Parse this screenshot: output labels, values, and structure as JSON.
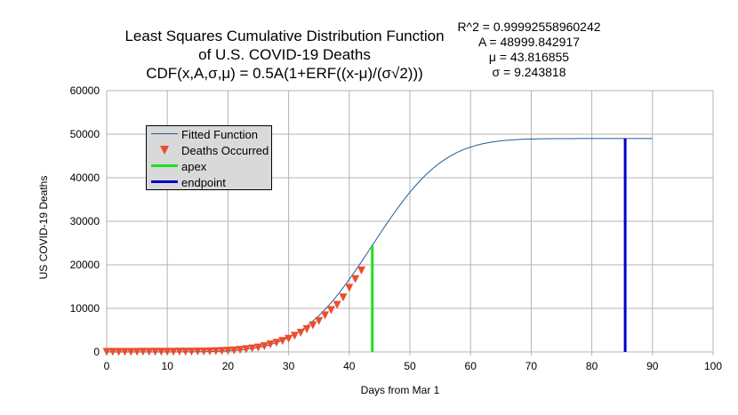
{
  "chart_data": {
    "type": "line",
    "title_lines": [
      "Least Squares Cumulative Distribution Function",
      "of U.S. COVID-19 Deaths",
      "CDF(x,A,σ,μ) = 0.5A(1+ERF((x-μ)/(σ√2)))"
    ],
    "stats": [
      "R^2 = 0.99992558960242",
      "A = 48999.842917",
      "μ = 43.816855",
      "σ = 9.243818"
    ],
    "xlabel": "Days from Mar 1",
    "ylabel": "US COVID-19 Deaths",
    "xlim": [
      0,
      100
    ],
    "ylim": [
      0,
      60000
    ],
    "x_ticks": [
      0,
      10,
      20,
      30,
      40,
      50,
      60,
      70,
      80,
      90,
      100
    ],
    "y_ticks": [
      0,
      10000,
      20000,
      30000,
      40000,
      50000,
      60000
    ],
    "grid": true,
    "legend_position": "top-left",
    "fit_params": {
      "A": 48999.842917,
      "mu": 43.816855,
      "sigma": 9.243818,
      "x_range": [
        0,
        90
      ]
    },
    "series": [
      {
        "name": "Fitted Function",
        "kind": "line",
        "color": "#1f5c99"
      },
      {
        "name": "Deaths Occurred",
        "kind": "markers",
        "color": "#ee4d2d",
        "x": [
          0,
          1,
          2,
          3,
          4,
          5,
          6,
          7,
          8,
          9,
          10,
          11,
          12,
          13,
          14,
          15,
          16,
          17,
          18,
          19,
          20,
          21,
          22,
          23,
          24,
          25,
          26,
          27,
          28,
          29,
          30,
          31,
          32,
          33,
          34,
          35,
          36,
          37,
          38,
          39,
          40,
          41,
          42
        ],
        "y": [
          1,
          2,
          6,
          9,
          11,
          12,
          15,
          19,
          22,
          26,
          30,
          38,
          41,
          48,
          57,
          69,
          85,
          108,
          150,
          200,
          260,
          340,
          470,
          600,
          780,
          1000,
          1300,
          1700,
          2100,
          2500,
          3000,
          3700,
          4400,
          5200,
          6100,
          7100,
          8400,
          9600,
          10800,
          12500,
          14700,
          16700,
          18700
        ]
      },
      {
        "name": "apex",
        "kind": "vline",
        "color": "#22dd22",
        "x": 43.8,
        "y": 24500
      },
      {
        "name": "endpoint",
        "kind": "vline",
        "color": "#0000cc",
        "x": 85.5,
        "y": 49000
      }
    ]
  }
}
